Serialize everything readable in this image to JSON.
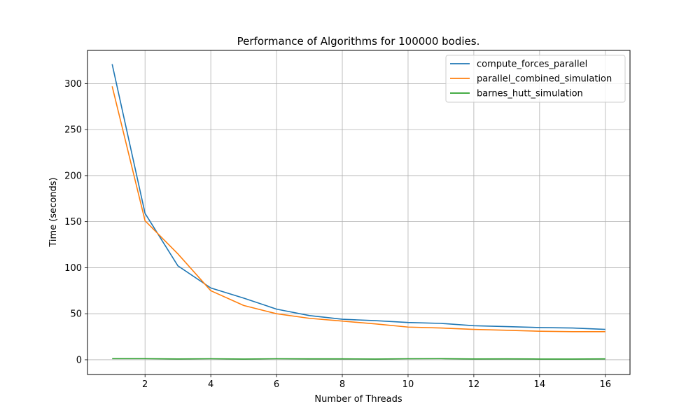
{
  "chart_data": {
    "type": "line",
    "title": "Performance of Algorithms for 100000 bodies.",
    "xlabel": "Number of Threads",
    "ylabel": "Time (seconds)",
    "x": [
      1,
      2,
      3,
      4,
      5,
      6,
      7,
      8,
      9,
      10,
      11,
      12,
      13,
      14,
      15,
      16
    ],
    "xlim": [
      0.25,
      16.75
    ],
    "ylim": [
      -16,
      336
    ],
    "xticks": [
      2,
      4,
      6,
      8,
      10,
      12,
      14,
      16
    ],
    "yticks": [
      0,
      50,
      100,
      150,
      200,
      250,
      300
    ],
    "grid": true,
    "legend_position": "top-right",
    "series": [
      {
        "name": "compute_forces_parallel",
        "color": "#1f77b4",
        "values": [
          321,
          159,
          102,
          78,
          67,
          55,
          48,
          44,
          42.5,
          40.5,
          39.5,
          37,
          36,
          35,
          34.5,
          33
        ]
      },
      {
        "name": "parallel_combined_simulation",
        "color": "#ff7f0e",
        "values": [
          297,
          151,
          115,
          75,
          59,
          50,
          45,
          42,
          39,
          35.5,
          34.5,
          33,
          32,
          31,
          30.5,
          30.5
        ]
      },
      {
        "name": "barnes_hutt_simulation",
        "color": "#2ca02c",
        "values": [
          1.2,
          1.2,
          0.9,
          1.1,
          0.8,
          1.1,
          1.0,
          1.0,
          0.8,
          1.1,
          1.2,
          0.9,
          1.0,
          0.8,
          0.8,
          1.0
        ]
      }
    ]
  }
}
